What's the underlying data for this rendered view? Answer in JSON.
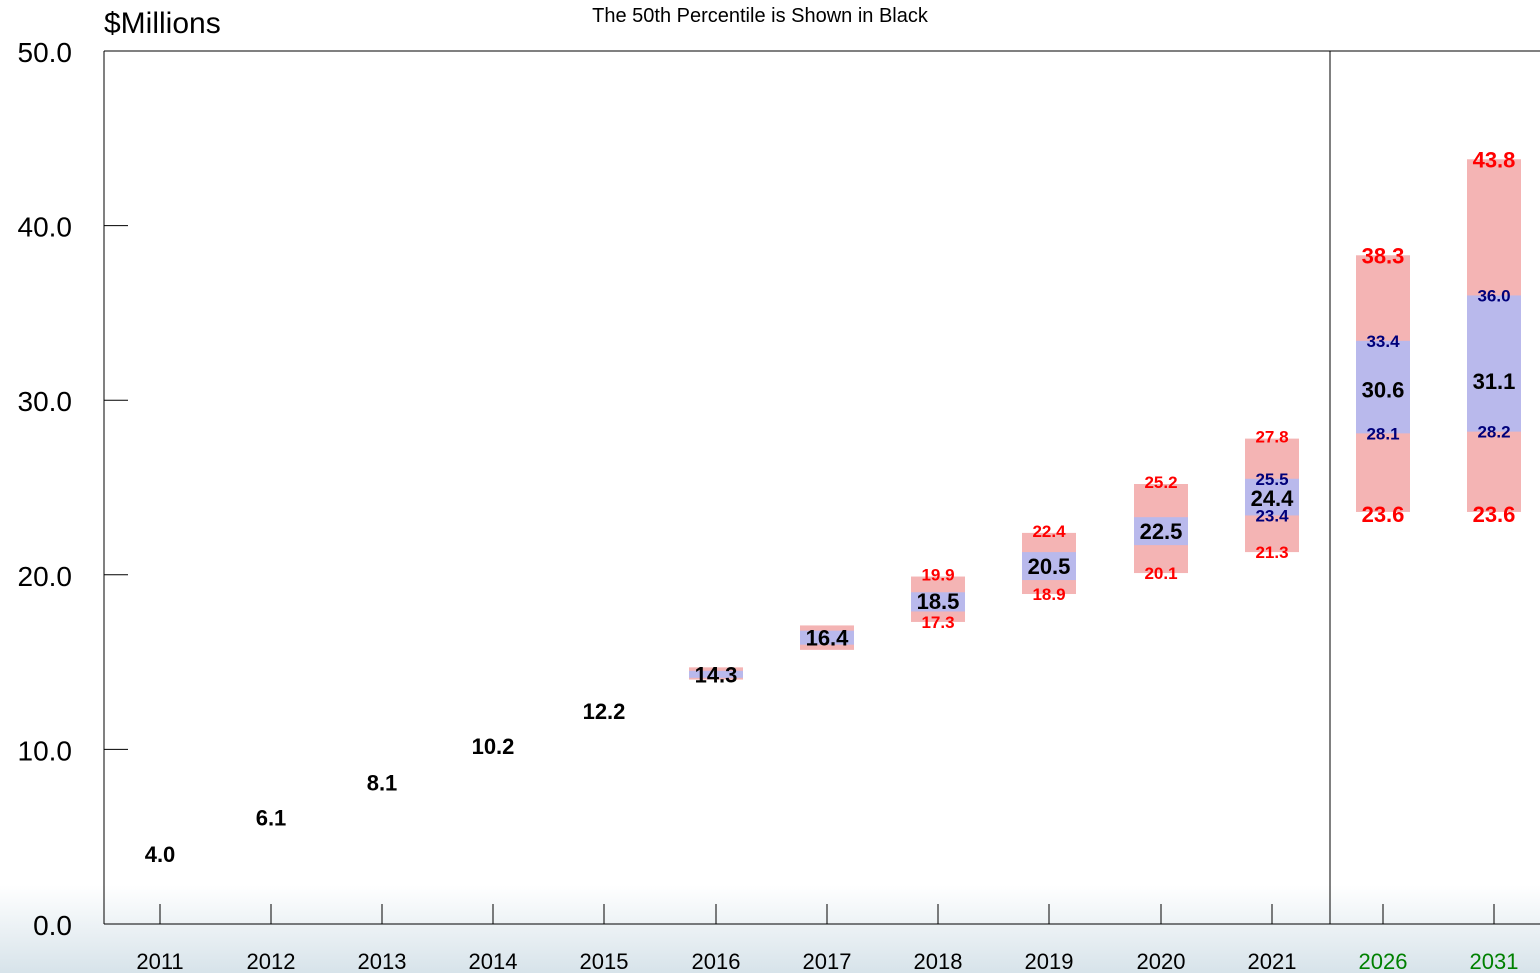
{
  "chart_data": {
    "type": "bar",
    "title": "The 50th Percentile is Shown in Black",
    "ylabel": "$Millions",
    "xlabel": "",
    "ylim": [
      0,
      50
    ],
    "y_ticks": [
      "0.0",
      "10.0",
      "20.0",
      "30.0",
      "40.0",
      "50.0"
    ],
    "categories": [
      "2011",
      "2012",
      "2013",
      "2014",
      "2015",
      "2016",
      "2017",
      "2018",
      "2019",
      "2020",
      "2021",
      "2026",
      "2031"
    ],
    "projection_categories": [
      "2026",
      "2031"
    ],
    "series": [
      {
        "name": "",
        "values": [
          null,
          null,
          null,
          null,
          null,
          null,
          null,
          17.3,
          18.9,
          20.1,
          21.3,
          23.6,
          23.6
        ]
      },
      {
        "name": "",
        "values": [
          null,
          null,
          null,
          null,
          null,
          null,
          null,
          null,
          null,
          null,
          23.4,
          28.1,
          28.2
        ]
      },
      {
        "name": "",
        "values": [
          4.0,
          6.1,
          8.1,
          10.2,
          12.2,
          14.3,
          16.4,
          18.5,
          20.5,
          22.5,
          24.4,
          30.6,
          31.1
        ]
      },
      {
        "name": "",
        "values": [
          null,
          null,
          null,
          null,
          null,
          null,
          null,
          null,
          null,
          null,
          25.5,
          33.4,
          36.0
        ]
      },
      {
        "name": "",
        "values": [
          null,
          null,
          null,
          null,
          null,
          null,
          null,
          19.9,
          22.4,
          25.2,
          27.8,
          38.3,
          43.8
        ]
      }
    ],
    "outer_band_unlabeled": [
      null,
      null,
      null,
      null,
      null,
      [
        14.0,
        14.7
      ],
      [
        15.7,
        17.1
      ],
      null,
      null,
      null,
      null,
      null,
      null
    ],
    "inner_band_unlabeled": [
      null,
      null,
      null,
      null,
      null,
      [
        14.1,
        14.5
      ],
      [
        16.0,
        16.8
      ],
      [
        17.9,
        19.0
      ],
      [
        19.7,
        21.3
      ],
      [
        21.7,
        23.3
      ],
      null,
      null,
      null
    ],
    "colors": {
      "outer_band": "#f4b4b4",
      "inner_band": "#b9b9ec",
      "median_text": "#000000",
      "outer_text": "#ff0000",
      "inner_text": "#00007a",
      "projection_year": "#008000",
      "axis": "#000000"
    },
    "grid": false,
    "legend": "none"
  }
}
